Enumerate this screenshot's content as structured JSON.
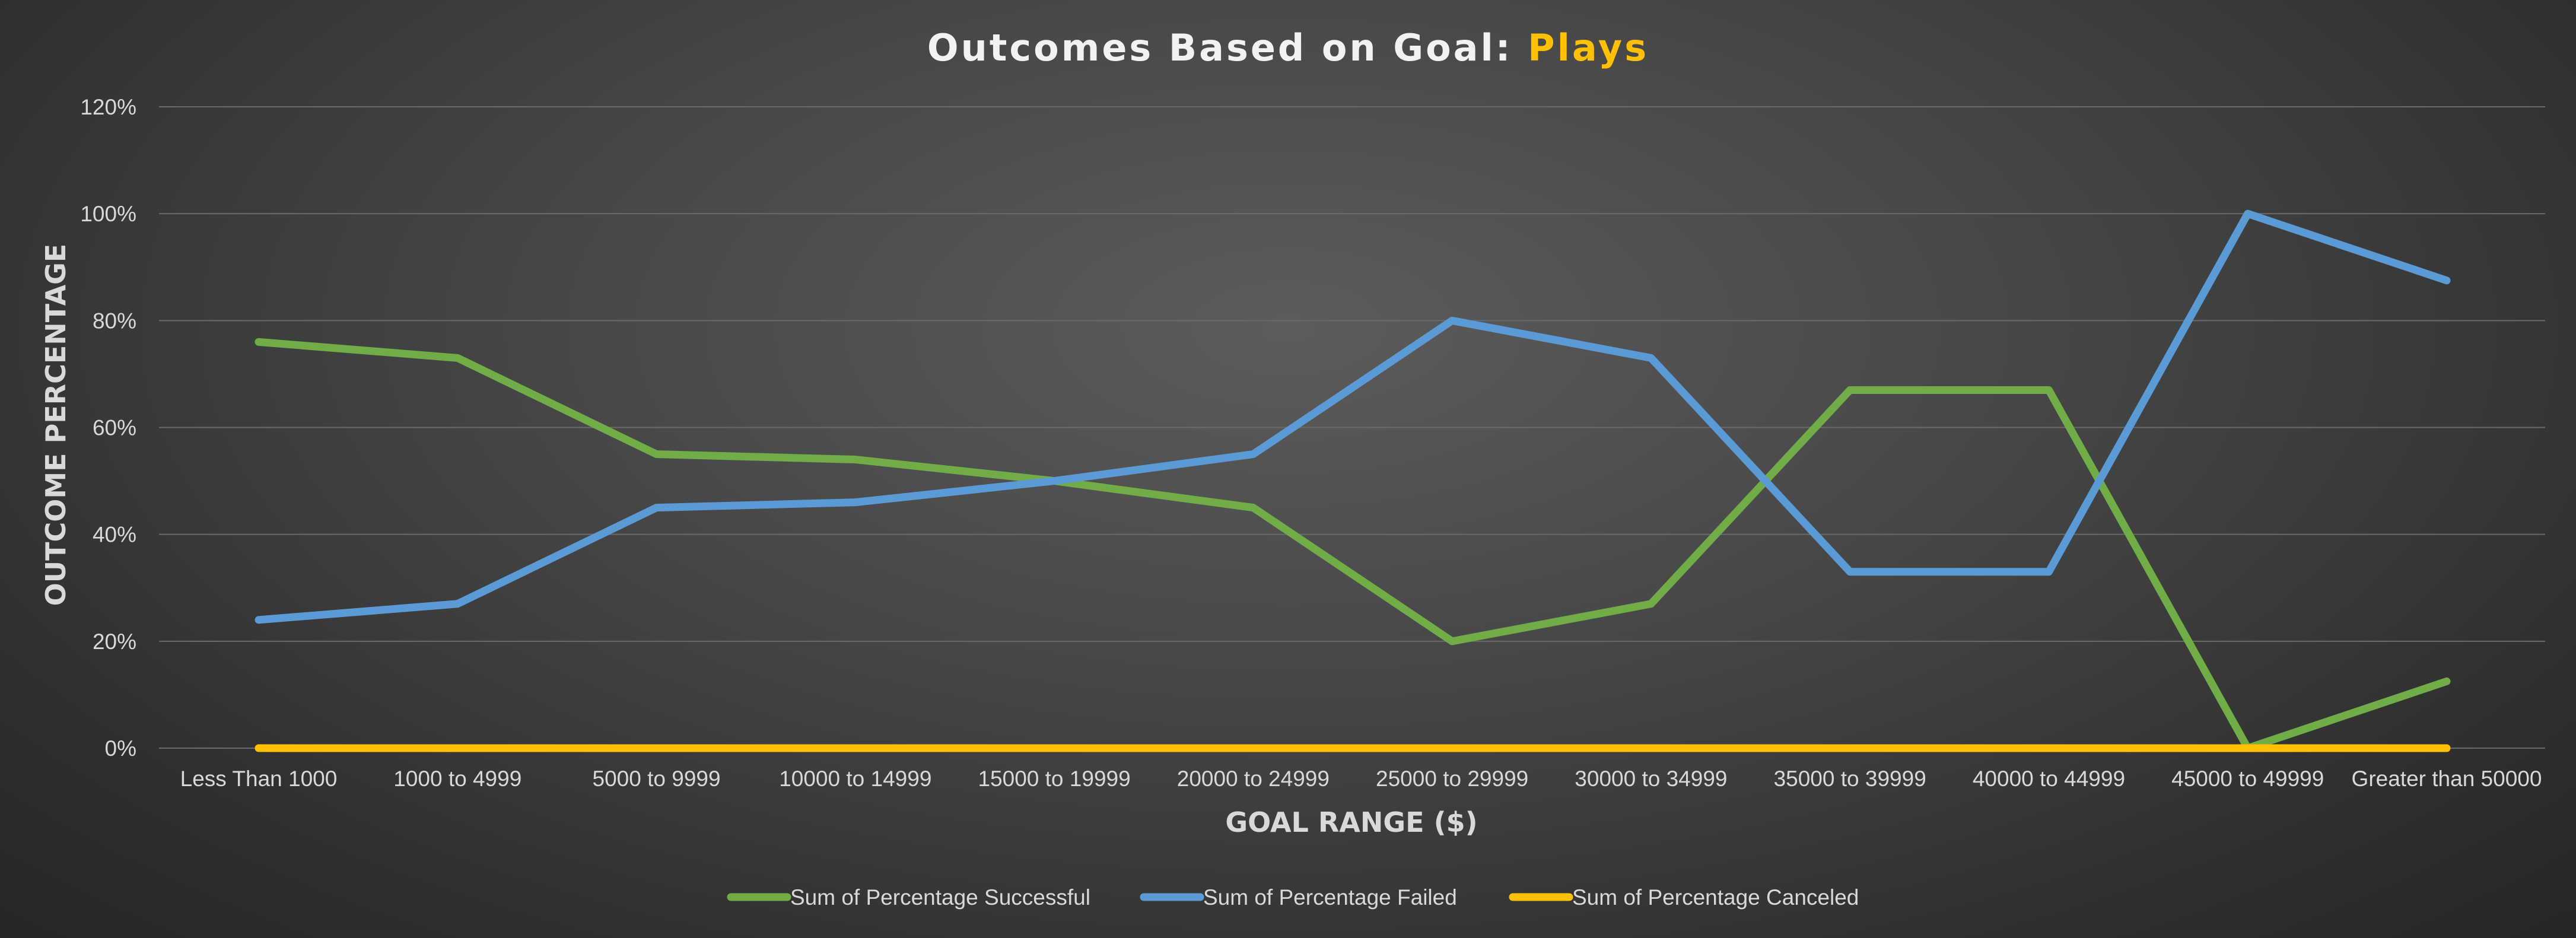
{
  "chart_data": {
    "type": "line",
    "title_main": "Outcomes Based on Goal: ",
    "title_highlight": "Plays",
    "xlabel": "GOAL RANGE ($)",
    "ylabel": "OUTCOME PERCENTAGE",
    "ylim": [
      0,
      120
    ],
    "yticks": [
      0,
      20,
      40,
      60,
      80,
      100,
      120
    ],
    "ytick_labels": [
      "0%",
      "20%",
      "40%",
      "60%",
      "80%",
      "100%",
      "120%"
    ],
    "grid": true,
    "legend_position": "bottom",
    "categories": [
      "Less Than 1000",
      "1000 to 4999",
      "5000 to 9999",
      "10000 to 14999",
      "15000 to 19999",
      "20000 to 24999",
      "25000 to 29999",
      "30000 to 34999",
      "35000 to 39999",
      "40000 to 44999",
      "45000 to 49999",
      "Greater than 50000"
    ],
    "series": [
      {
        "name": "Sum of Percentage Successful",
        "color": "#70ad47",
        "values": [
          76,
          73,
          55,
          54,
          50,
          45,
          20,
          27,
          67,
          67,
          0,
          12.5
        ]
      },
      {
        "name": "Sum of Percentage Failed",
        "color": "#5b9bd5",
        "values": [
          24,
          27,
          45,
          46,
          50,
          55,
          80,
          73,
          33,
          33,
          100,
          87.5
        ]
      },
      {
        "name": "Sum of Percentage Canceled",
        "color": "#ffc000",
        "values": [
          0,
          0,
          0,
          0,
          0,
          0,
          0,
          0,
          0,
          0,
          0,
          0
        ]
      }
    ],
    "title_color": "#f2f2f2",
    "highlight_color": "#ffc000"
  }
}
